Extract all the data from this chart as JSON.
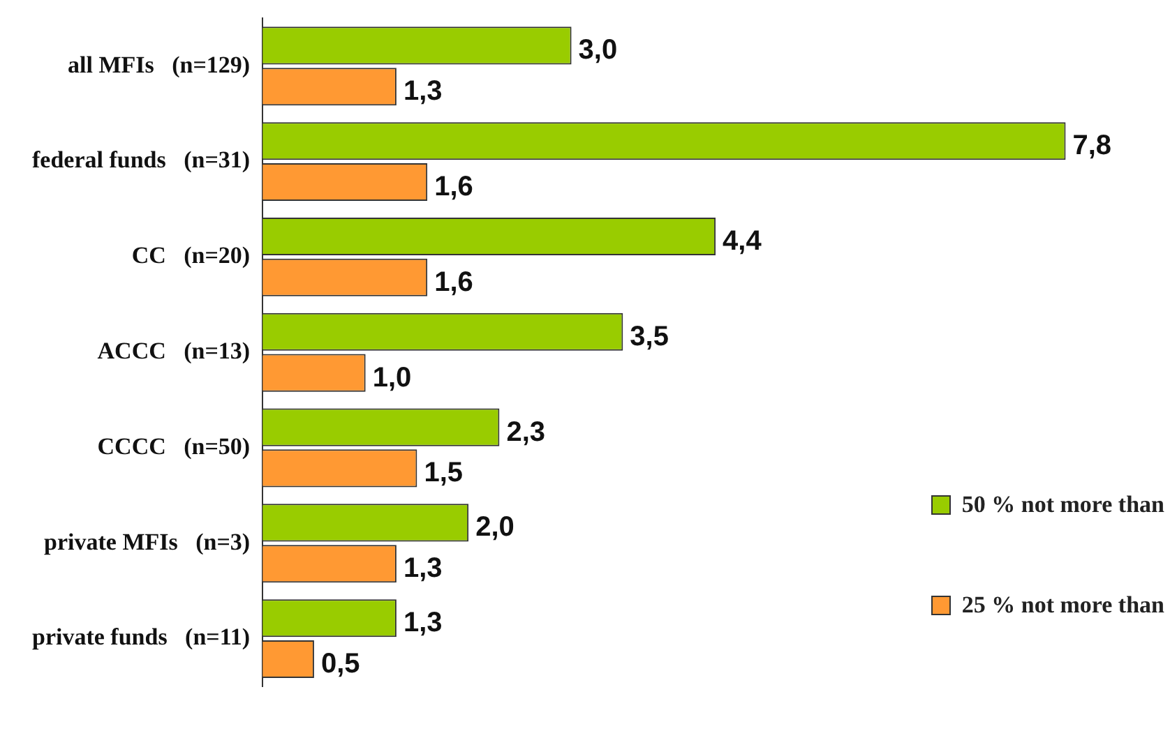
{
  "chart_data": {
    "type": "bar",
    "orientation": "horizontal",
    "categories": [
      "all MFIs   (n=129)",
      "federal funds   (n=31)",
      "CC   (n=20)",
      "ACCC   (n=13)",
      "CCCC   (n=50)",
      "private MFIs   (n=3)",
      "private funds   (n=11)"
    ],
    "series": [
      {
        "name": "50 % not more than",
        "color": "#99cc00",
        "values": [
          3.0,
          7.8,
          4.4,
          3.5,
          2.3,
          2.0,
          1.3
        ],
        "value_labels": [
          "3,0",
          "7,8",
          "4,4",
          "3,5",
          "2,3",
          "2,0",
          "1,3"
        ]
      },
      {
        "name": "25  % not more than",
        "color": "#ff9933",
        "values": [
          1.3,
          1.6,
          1.6,
          1.0,
          1.5,
          1.3,
          0.5
        ],
        "value_labels": [
          "1,3",
          "1,6",
          "1,6",
          "1,0",
          "1,5",
          "1,3",
          "0,5"
        ]
      }
    ],
    "legend": "bottom right"
  }
}
